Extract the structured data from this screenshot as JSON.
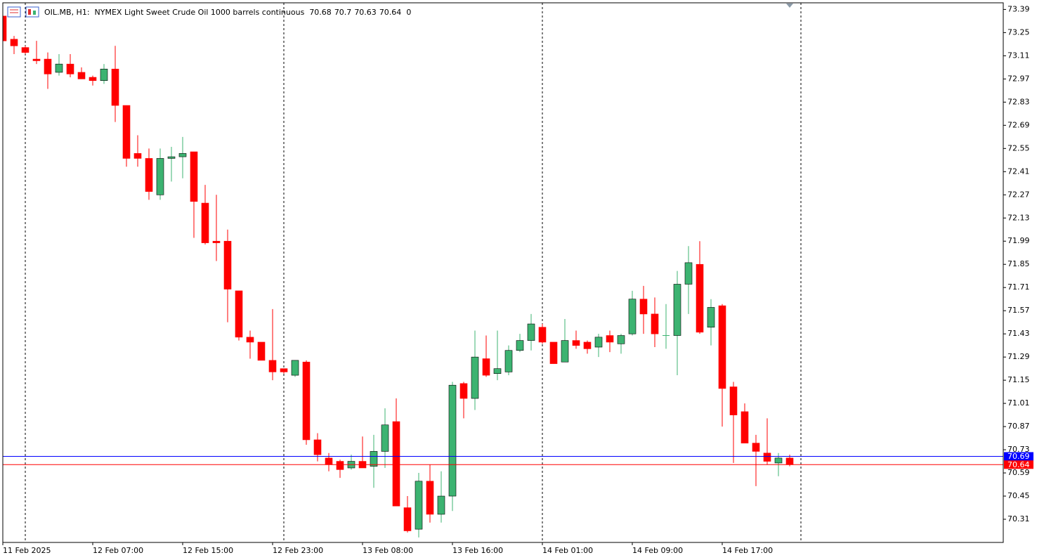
{
  "chart_data": {
    "type": "candlestick",
    "symbol": "OIL.MB, H1:",
    "description": "NYMEX Light Sweet Crude Oil 1000 barrels continuous",
    "volume": 0,
    "categories": [
      "11 Feb 2025",
      null,
      null,
      null,
      null,
      null,
      null,
      null,
      "12 Feb 07:00",
      null,
      null,
      null,
      null,
      null,
      null,
      null,
      "12 Feb 15:00",
      null,
      null,
      null,
      null,
      null,
      null,
      null,
      "12 Feb 23:00",
      null,
      null,
      null,
      null,
      null,
      null,
      null,
      "13 Feb 08:00",
      null,
      null,
      null,
      null,
      null,
      null,
      null,
      "13 Feb 16:00",
      null,
      null,
      null,
      null,
      null,
      null,
      null,
      "14 Feb 01:00",
      null,
      null,
      null,
      null,
      null,
      null,
      null,
      "14 Feb 09:00",
      null,
      null,
      null,
      null,
      null,
      null,
      null,
      "14 Feb 17:00",
      null,
      null,
      null,
      null,
      null,
      null
    ],
    "open": [
      73.35,
      73.21,
      73.16,
      73.09,
      73.09,
      73.01,
      73.06,
      73.01,
      72.98,
      72.96,
      73.03,
      72.81,
      72.52,
      72.49,
      72.27,
      72.49,
      72.5,
      72.53,
      72.22,
      71.99,
      71.99,
      71.69,
      71.41,
      71.38,
      71.27,
      71.22,
      71.18,
      71.26,
      70.79,
      70.68,
      70.66,
      70.62,
      70.66,
      70.63,
      70.72,
      70.9,
      70.38,
      70.25,
      70.54,
      70.34,
      70.45,
      71.13,
      71.04,
      71.28,
      71.19,
      71.2,
      71.33,
      71.39,
      71.47,
      71.38,
      71.26,
      71.39,
      71.38,
      71.35,
      71.42,
      71.37,
      71.43,
      71.64,
      71.55,
      71.42,
      71.42,
      71.73,
      71.85,
      71.47,
      71.6,
      71.11,
      70.96,
      70.77,
      70.71,
      70.65,
      70.68
    ],
    "high": [
      73.36,
      73.23,
      73.17,
      73.2,
      73.13,
      73.12,
      73.12,
      73.04,
      72.99,
      73.06,
      73.17,
      72.81,
      72.63,
      72.55,
      72.55,
      72.56,
      72.62,
      72.53,
      72.33,
      72.27,
      72.06,
      71.69,
      71.45,
      71.38,
      71.58,
      71.22,
      71.27,
      71.27,
      70.83,
      70.71,
      70.67,
      70.7,
      70.81,
      70.82,
      70.98,
      71.04,
      70.45,
      70.59,
      70.64,
      70.6,
      71.14,
      71.14,
      71.45,
      71.42,
      71.45,
      71.36,
      71.43,
      71.55,
      71.49,
      71.38,
      71.52,
      71.45,
      71.39,
      71.43,
      71.45,
      71.43,
      71.69,
      71.72,
      71.65,
      71.61,
      71.81,
      71.96,
      71.99,
      71.64,
      71.61,
      71.14,
      71.01,
      70.82,
      70.92,
      70.71,
      70.7
    ],
    "low": [
      73.19,
      73.12,
      73.12,
      73.06,
      72.91,
      72.99,
      72.98,
      72.97,
      72.93,
      72.94,
      72.71,
      72.44,
      72.44,
      72.24,
      72.24,
      72.35,
      72.37,
      72.01,
      71.97,
      71.87,
      71.5,
      71.39,
      71.28,
      71.27,
      71.15,
      71.19,
      71.17,
      70.76,
      70.66,
      70.6,
      70.56,
      70.61,
      70.62,
      70.5,
      70.62,
      70.39,
      70.23,
      70.2,
      70.29,
      70.29,
      70.36,
      70.92,
      70.97,
      71.17,
      71.15,
      71.18,
      71.32,
      71.33,
      71.37,
      71.25,
      71.26,
      71.34,
      71.31,
      71.29,
      71.32,
      71.31,
      71.42,
      71.43,
      71.35,
      71.34,
      71.18,
      71.55,
      71.43,
      71.36,
      70.87,
      70.65,
      70.77,
      70.51,
      70.64,
      70.57,
      70.63
    ],
    "close": [
      73.2,
      73.17,
      73.13,
      73.08,
      73.0,
      73.06,
      73.0,
      72.97,
      72.96,
      73.03,
      72.81,
      72.49,
      72.49,
      72.29,
      72.49,
      72.5,
      72.52,
      72.23,
      71.98,
      71.98,
      71.7,
      71.41,
      71.38,
      71.27,
      71.2,
      71.2,
      71.27,
      70.79,
      70.7,
      70.64,
      70.61,
      70.66,
      70.62,
      70.72,
      70.88,
      70.39,
      70.24,
      70.54,
      70.34,
      70.45,
      71.12,
      71.04,
      71.29,
      71.18,
      71.22,
      71.33,
      71.39,
      71.49,
      71.38,
      71.25,
      71.39,
      71.36,
      71.34,
      71.41,
      71.38,
      71.42,
      71.64,
      71.55,
      71.43,
      71.42,
      71.73,
      71.86,
      71.44,
      71.59,
      71.1,
      70.94,
      70.77,
      70.72,
      70.66,
      70.68,
      70.64
    ],
    "up_color": "#3cb371",
    "down_color": "#ff0000",
    "ask": {
      "value": 70.69,
      "color": "#0000ff"
    },
    "bid": {
      "value": 70.64,
      "color": "#ff0000"
    },
    "ylim": [
      70.17,
      73.43
    ],
    "yticks": [
      73.39,
      73.25,
      73.11,
      72.97,
      72.83,
      72.69,
      72.55,
      72.41,
      72.27,
      72.13,
      71.99,
      71.85,
      71.71,
      71.57,
      71.43,
      71.29,
      71.15,
      71.01,
      70.87,
      70.73,
      70.59,
      70.45,
      70.31
    ],
    "grid": false
  }
}
